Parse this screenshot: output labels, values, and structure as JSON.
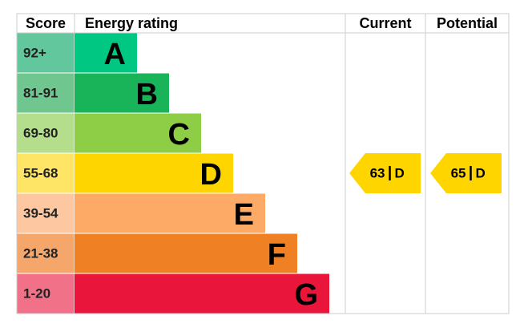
{
  "header": {
    "score": "Score",
    "rating": "Energy rating",
    "current": "Current",
    "potential": "Potential"
  },
  "bands": [
    {
      "score": "92+",
      "letter": "A",
      "color": "#00c781",
      "score_color": "#63c79d"
    },
    {
      "score": "81-91",
      "letter": "B",
      "color": "#19b459",
      "score_color": "#70c68f"
    },
    {
      "score": "69-80",
      "letter": "C",
      "color": "#8dce46",
      "score_color": "#b5de8c"
    },
    {
      "score": "55-68",
      "letter": "D",
      "color": "#ffd500",
      "score_color": "#ffe566"
    },
    {
      "score": "39-54",
      "letter": "E",
      "color": "#fcaa65",
      "score_color": "#fdc8a1"
    },
    {
      "score": "21-38",
      "letter": "F",
      "color": "#ef8023",
      "score_color": "#f5a66b"
    },
    {
      "score": "1-20",
      "letter": "G",
      "color": "#e9153b",
      "score_color": "#f07188"
    }
  ],
  "current": {
    "value": 63,
    "band": "D"
  },
  "potential": {
    "value": 65,
    "band": "D"
  }
}
